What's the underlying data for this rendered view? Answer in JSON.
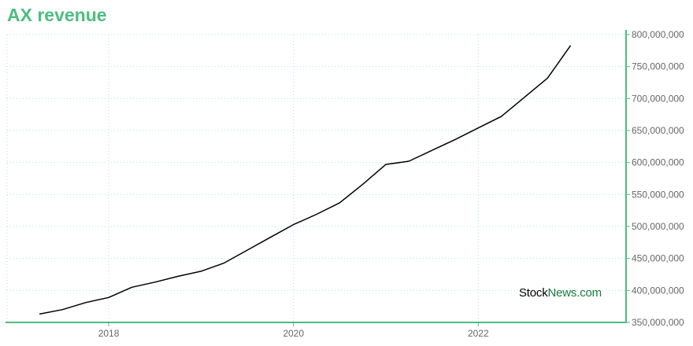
{
  "title": "AX revenue",
  "colors": {
    "accent": "#4dbd80",
    "line": "#000000",
    "grid": "#b7dfe8"
  },
  "watermark": {
    "part1": "Stock",
    "part2": "News.com"
  },
  "chart_data": {
    "type": "line",
    "title": "AX revenue",
    "xlabel": "",
    "ylabel": "",
    "grid": true,
    "y_axis_side": "right",
    "xlim": [
      2016.9,
      2023.6
    ],
    "ylim": [
      350000000,
      800000000
    ],
    "x_ticks": [
      2018,
      2020,
      2022
    ],
    "x_tick_labels": [
      "2018",
      "2020",
      "2022"
    ],
    "y_ticks": [
      350000000,
      400000000,
      450000000,
      500000000,
      550000000,
      600000000,
      650000000,
      700000000,
      750000000,
      800000000
    ],
    "y_tick_labels": [
      "350,000,000",
      "400,000,000",
      "450,000,000",
      "500,000,000",
      "550,000,000",
      "600,000,000",
      "650,000,000",
      "700,000,000",
      "750,000,000",
      "800,000,000"
    ],
    "series": [
      {
        "x": [
          2017.25,
          2017.5,
          2017.75,
          2018.0,
          2018.25,
          2018.5,
          2018.75,
          2019.0,
          2019.25,
          2019.5,
          2019.75,
          2020.0,
          2020.25,
          2020.5,
          2020.75,
          2021.0,
          2021.25,
          2021.5,
          2021.75,
          2022.0,
          2022.25,
          2022.5,
          2022.75,
          2023.0
        ],
        "y": [
          363000000,
          370000000,
          381000000,
          389000000,
          405000000,
          413000000,
          422000000,
          430000000,
          443000000,
          463000000,
          483000000,
          503000000,
          519000000,
          537000000,
          566000000,
          597000000,
          602000000,
          619000000,
          636000000,
          654000000,
          672000000,
          702000000,
          732000000,
          783000000
        ]
      }
    ]
  }
}
